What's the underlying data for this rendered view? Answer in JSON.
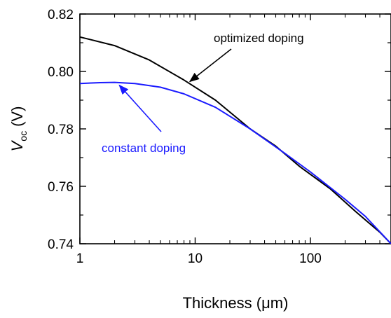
{
  "chart_data": {
    "type": "line",
    "xlabel": "Thickness (μm)",
    "ylabel": {
      "symbol": "V",
      "subscript": "oc",
      "unit": "(V)"
    },
    "xscale": "log",
    "xlim": [
      1,
      500
    ],
    "ylim": [
      0.74,
      0.82
    ],
    "x_ticks": [
      1,
      10,
      100
    ],
    "x_tick_labels": [
      "1",
      "10",
      "100"
    ],
    "y_ticks": [
      0.74,
      0.76,
      0.78,
      0.8,
      0.82
    ],
    "y_tick_labels": [
      "0.74",
      "0.76",
      "0.78",
      "0.80",
      "0.82"
    ],
    "grid": false,
    "legend": "none",
    "series": [
      {
        "name": "optimized doping",
        "color": "#000000",
        "x": [
          1,
          2,
          4,
          8,
          15,
          30,
          50,
          80,
          150,
          250,
          400,
          500
        ],
        "y": [
          0.812,
          0.809,
          0.804,
          0.797,
          0.79,
          0.78,
          0.774,
          0.767,
          0.759,
          0.751,
          0.744,
          0.74
        ]
      },
      {
        "name": "constant doping",
        "color": "#1a1aff",
        "x": [
          1,
          1.5,
          2,
          3,
          5,
          8,
          15,
          30,
          60,
          100,
          200,
          300,
          500
        ],
        "y": [
          0.7958,
          0.7961,
          0.7962,
          0.7958,
          0.7945,
          0.7922,
          0.7875,
          0.78,
          0.7715,
          0.765,
          0.7555,
          0.7495,
          0.74
        ]
      }
    ],
    "annotations": [
      {
        "text": "optimized doping",
        "color": "#000000",
        "arrow_to": {
          "x": 9,
          "y": 0.7965
        }
      },
      {
        "text": "constant doping",
        "color": "#1a1aff",
        "arrow_to": {
          "x": 2.2,
          "y": 0.7952
        }
      }
    ]
  }
}
